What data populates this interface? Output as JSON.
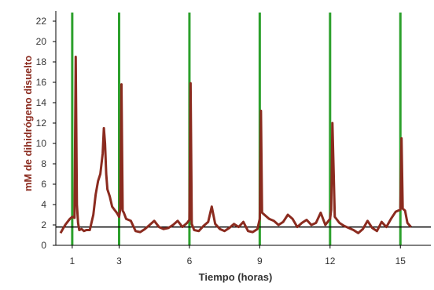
{
  "chart_data": {
    "type": "line",
    "xlabel": "Tiempo (horas)",
    "ylabel": "mM de dihidrógeno disuelto",
    "x_ticks": [
      "1",
      "3",
      "6",
      "9",
      "12",
      "15"
    ],
    "y_ticks": [
      "0",
      "2",
      "4",
      "6",
      "8",
      "10",
      "12",
      "14",
      "16",
      "18",
      "20",
      "22"
    ],
    "xlim": [
      0.3,
      16.3
    ],
    "ylim": [
      0,
      23
    ],
    "grid": false,
    "reference_line_y": 1.8,
    "event_lines_x": [
      1,
      3,
      6,
      9,
      12,
      15
    ],
    "colors": {
      "series": "#8b2b1f",
      "event_lines": "#2ca02c",
      "reference": "#000000",
      "ylabel": "#8b2b1f"
    },
    "series": [
      {
        "x": [
          0.5,
          0.6,
          0.7,
          0.8,
          0.9,
          1.0,
          1.1,
          1.15,
          1.2,
          1.25,
          1.3,
          1.4,
          1.5,
          1.6,
          1.75,
          1.9,
          2.0,
          2.1,
          2.2,
          2.3,
          2.35,
          2.4,
          2.45,
          2.5,
          2.6,
          2.7,
          2.8,
          2.9,
          3.0,
          3.05,
          3.1,
          3.15,
          3.2,
          3.3,
          3.5,
          3.7,
          3.9,
          4.1,
          4.3,
          4.5,
          4.7,
          4.9,
          5.1,
          5.3,
          5.5,
          5.7,
          5.9,
          6.0,
          6.05,
          6.1,
          6.2,
          6.4,
          6.6,
          6.8,
          6.95,
          7.1,
          7.3,
          7.5,
          7.7,
          7.9,
          8.1,
          8.3,
          8.5,
          8.7,
          8.9,
          9.0,
          9.05,
          9.1,
          9.2,
          9.4,
          9.6,
          9.8,
          10.0,
          10.2,
          10.4,
          10.6,
          10.8,
          11.0,
          11.2,
          11.4,
          11.6,
          11.8,
          12.0,
          12.05,
          12.1,
          12.2,
          12.4,
          12.6,
          12.8,
          13.0,
          13.2,
          13.4,
          13.6,
          13.8,
          14.0,
          14.2,
          14.4,
          14.6,
          14.8,
          15.0,
          15.05,
          15.1,
          15.2,
          15.3,
          15.45
        ],
        "y": [
          1.2,
          1.6,
          2.0,
          2.3,
          2.6,
          2.8,
          2.7,
          18.5,
          4.0,
          2.2,
          1.5,
          1.6,
          1.4,
          1.5,
          1.5,
          3.0,
          5.0,
          6.3,
          7.0,
          9.0,
          11.5,
          10.0,
          7.0,
          5.5,
          4.8,
          3.8,
          3.5,
          3.2,
          2.8,
          3.6,
          15.8,
          3.4,
          3.2,
          2.6,
          2.4,
          1.4,
          1.3,
          1.6,
          2.0,
          2.4,
          1.8,
          1.6,
          1.7,
          2.0,
          2.4,
          1.8,
          2.2,
          2.5,
          15.9,
          2.1,
          1.5,
          1.4,
          1.9,
          2.3,
          3.8,
          2.1,
          1.6,
          1.4,
          1.7,
          2.1,
          1.8,
          2.3,
          1.4,
          1.3,
          1.6,
          2.6,
          13.2,
          3.2,
          3.0,
          2.6,
          2.4,
          2.0,
          2.3,
          3.0,
          2.6,
          1.8,
          2.2,
          2.5,
          2.0,
          2.2,
          3.2,
          2.0,
          2.6,
          3.5,
          12.0,
          2.8,
          2.2,
          1.9,
          1.7,
          1.5,
          1.2,
          1.6,
          2.4,
          1.7,
          1.4,
          2.3,
          1.8,
          2.6,
          3.3,
          3.5,
          10.5,
          3.6,
          3.4,
          2.2,
          1.8
        ]
      }
    ]
  }
}
